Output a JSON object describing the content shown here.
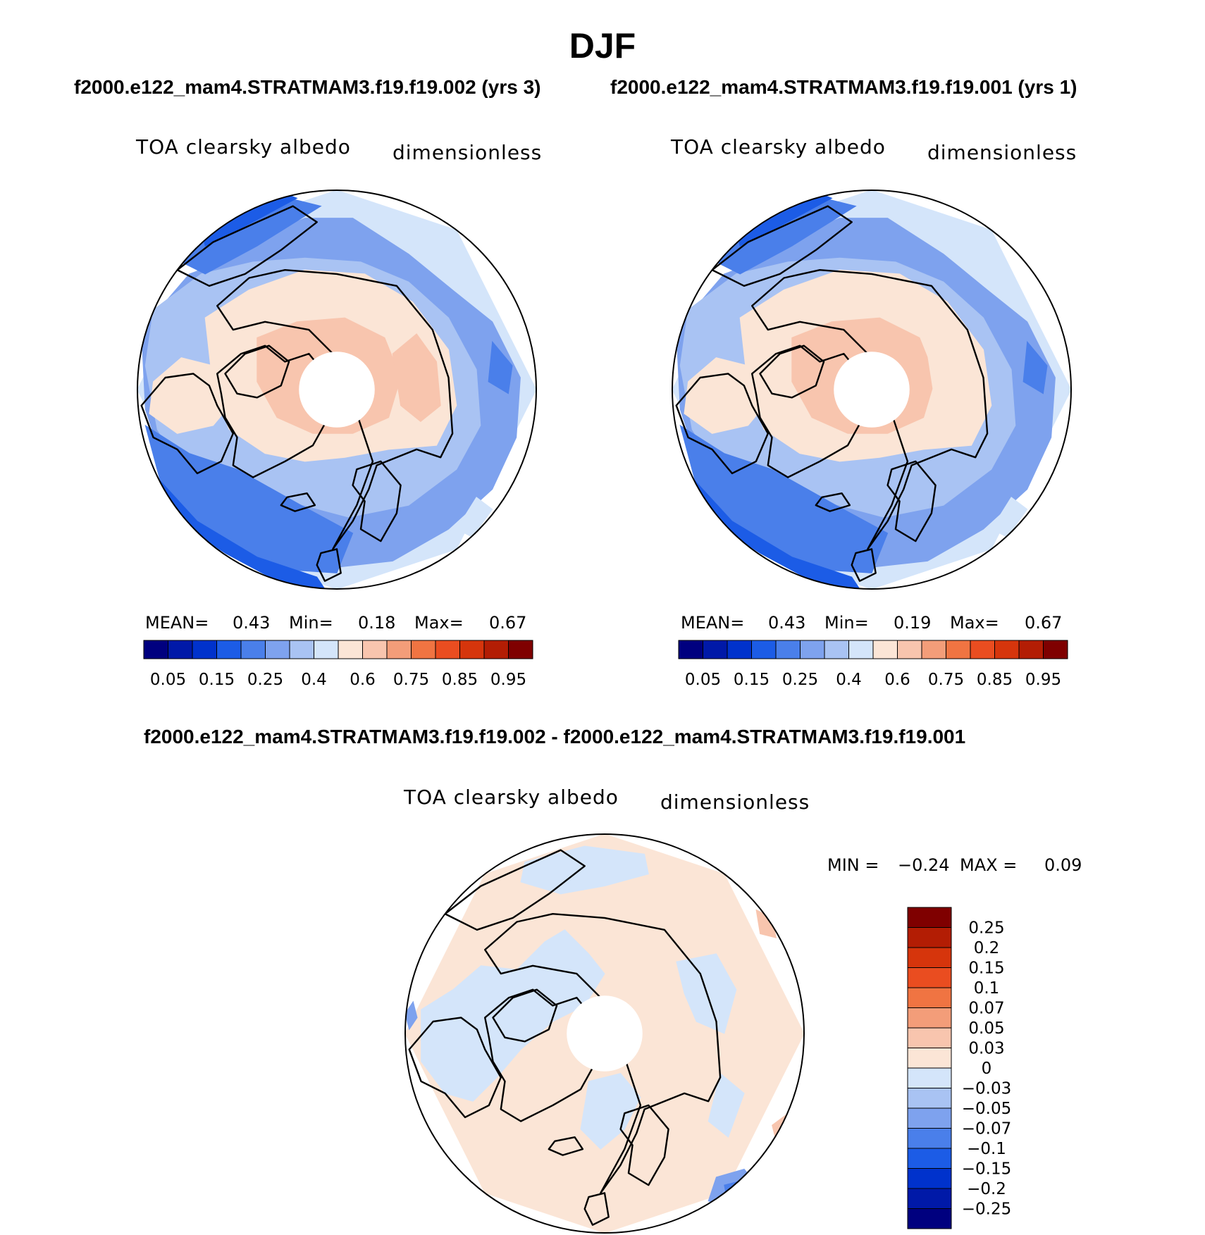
{
  "figure": {
    "title": "DJF",
    "top_subtitle_left": "f2000.e122_mam4.STRATMAM3.f19.f19.002 (yrs 3)",
    "top_subtitle_right": "f2000.e122_mam4.STRATMAM3.f19.f19.001 (yrs 1)",
    "diff_subtitle": "f2000.e122_mam4.STRATMAM3.f19.f19.002 - f2000.e122_mam4.STRATMAM3.f19.f19.001"
  },
  "colors": {
    "abs_scale": [
      "#00007f",
      "#0019a8",
      "#0032cc",
      "#1c5ce6",
      "#4a7fea",
      "#7ea2ee",
      "#a9c3f3",
      "#d4e5fa",
      "#fbe5d6",
      "#f8c5ae",
      "#f39d79",
      "#f07442",
      "#ea4d20",
      "#d6350c",
      "#b31d04",
      "#7f0000"
    ],
    "diff_scale": [
      "#00007f",
      "#0019a8",
      "#0032cc",
      "#1c5ce6",
      "#4a7fea",
      "#7ea2ee",
      "#a9c3f3",
      "#d4e5fa",
      "#fbe5d6",
      "#f8c5ae",
      "#f39d79",
      "#f07442",
      "#ea4d20",
      "#d6350c",
      "#b31d04",
      "#7f0000"
    ],
    "land_outline": "#000000"
  },
  "chart_data": [
    {
      "type": "heatmap",
      "projection": "north-polar-stereographic",
      "title": "TOA clearsky albedo",
      "units": "dimensionless",
      "stats": {
        "mean_label": "MEAN=",
        "mean": "0.43",
        "min_label": "Min=",
        "min": "0.18",
        "max_label": "Max=",
        "max": "0.67"
      },
      "colorbar_ticks": [
        "0.05",
        "0.15",
        "0.25",
        "0.4",
        "0.6",
        "0.75",
        "0.85",
        "0.95"
      ]
    },
    {
      "type": "heatmap",
      "projection": "north-polar-stereographic",
      "title": "TOA clearsky albedo",
      "units": "dimensionless",
      "stats": {
        "mean_label": "MEAN=",
        "mean": "0.43",
        "min_label": "Min=",
        "min": "0.19",
        "max_label": "Max=",
        "max": "0.67"
      },
      "colorbar_ticks": [
        "0.05",
        "0.15",
        "0.25",
        "0.4",
        "0.6",
        "0.75",
        "0.85",
        "0.95"
      ]
    },
    {
      "type": "heatmap",
      "projection": "north-polar-stereographic",
      "title": "TOA clearsky albedo",
      "units": "dimensionless",
      "stats": {
        "min_label": "MIN =",
        "min": "−0.24",
        "max_label": "MAX =",
        "max": "0.09"
      },
      "colorbar_ticks": [
        "0.25",
        "0.2",
        "0.15",
        "0.1",
        "0.07",
        "0.05",
        "0.03",
        "0",
        "−0.03",
        "−0.05",
        "−0.07",
        "−0.1",
        "−0.15",
        "−0.2",
        "−0.25"
      ]
    }
  ]
}
